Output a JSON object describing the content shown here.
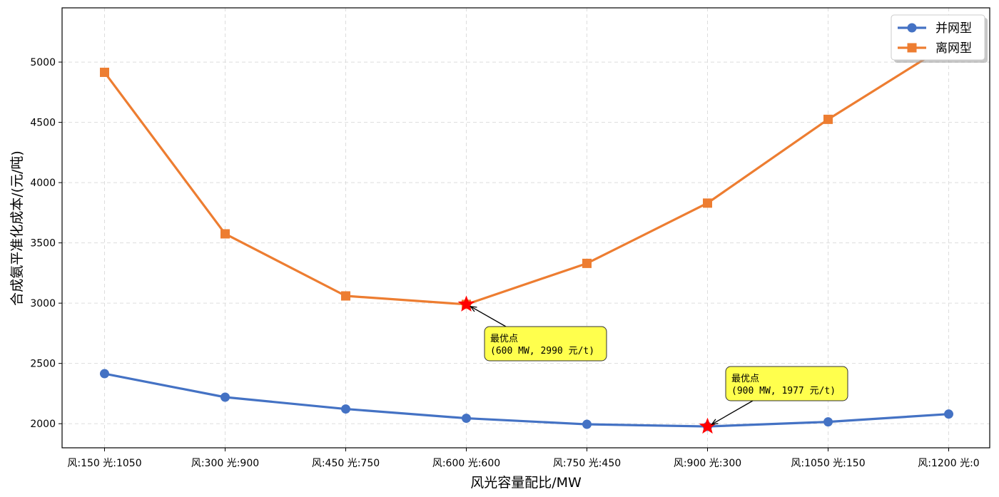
{
  "chart_data": {
    "type": "line",
    "xlabel": "风光容量配比/MW",
    "ylabel": "合成氨平准化成本/(元/吨)",
    "categories": [
      "风:150 光:1050",
      "风:300 光:900",
      "风:450 光:750",
      "风:600 光:600",
      "风:750 光:450",
      "风:900 光:300",
      "风:1050 光:150",
      "风:1200 光:0"
    ],
    "ylim": [
      1800,
      5450
    ],
    "yticks": [
      2000,
      2500,
      3000,
      3500,
      4000,
      4500,
      5000
    ],
    "grid": true,
    "legend_position": "top-right",
    "series": [
      {
        "name": "并网型",
        "color": "#4472C4",
        "marker": "circle",
        "values": [
          2415,
          2220,
          2122,
          2045,
          1995,
          1977,
          2015,
          2080
        ]
      },
      {
        "name": "离网型",
        "color": "#ED7D31",
        "marker": "square",
        "values": [
          4915,
          3575,
          3060,
          2990,
          3330,
          3830,
          4525,
          5150
        ]
      }
    ],
    "annotations": [
      {
        "series": 1,
        "index": 3,
        "line1": "最优点",
        "line2": "(600 MW, 2990 元/t)"
      },
      {
        "series": 0,
        "index": 5,
        "line1": "最优点",
        "line2": "(900 MW, 1977 元/t)"
      }
    ],
    "highlight_color": "#FF0000",
    "annotation_fill": "#FFFF4D"
  }
}
